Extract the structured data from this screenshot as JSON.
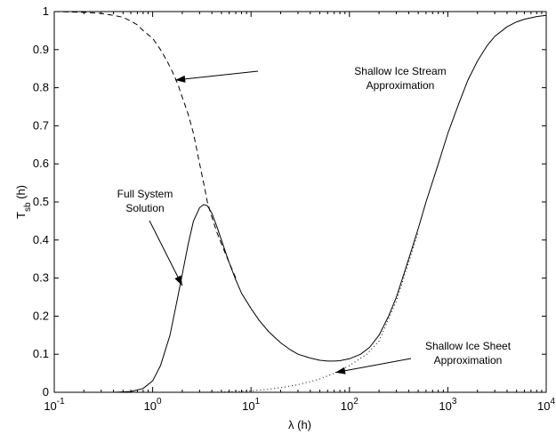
{
  "chart_data": {
    "type": "line",
    "title": "",
    "xlabel": "λ (h)",
    "ylabel": {
      "main": "T",
      "sub": "sb",
      "suffix": " (h)"
    },
    "x_scale": "log",
    "xlim": [
      0.1,
      10000
    ],
    "ylim": [
      0,
      1
    ],
    "grid": false,
    "x_ticks": [
      {
        "value": 0.1,
        "base": "10",
        "exp": "-1"
      },
      {
        "value": 1,
        "base": "10",
        "exp": "0"
      },
      {
        "value": 10,
        "base": "10",
        "exp": "1"
      },
      {
        "value": 100,
        "base": "10",
        "exp": "2"
      },
      {
        "value": 1000,
        "base": "10",
        "exp": "3"
      },
      {
        "value": 10000,
        "base": "10",
        "exp": "4"
      }
    ],
    "y_ticks": [
      {
        "value": 0,
        "label": "0"
      },
      {
        "value": 0.1,
        "label": "0.1"
      },
      {
        "value": 0.2,
        "label": "0.2"
      },
      {
        "value": 0.3,
        "label": "0.3"
      },
      {
        "value": 0.4,
        "label": "0.4"
      },
      {
        "value": 0.5,
        "label": "0.5"
      },
      {
        "value": 0.6,
        "label": "0.6"
      },
      {
        "value": 0.7,
        "label": "0.7"
      },
      {
        "value": 0.8,
        "label": "0.8"
      },
      {
        "value": 0.9,
        "label": "0.9"
      },
      {
        "value": 1,
        "label": "1"
      }
    ],
    "series": [
      {
        "style": "solid",
        "x": [
          0.1,
          0.4,
          0.6,
          0.8,
          1.0,
          1.2,
          1.5,
          1.8,
          2.0,
          2.3,
          2.6,
          3.0,
          3.3,
          3.6,
          4.0,
          4.5,
          5.0,
          6.0,
          7.0,
          8.0,
          10,
          12,
          15,
          20,
          25,
          30,
          40,
          50,
          60,
          70,
          80,
          100,
          130,
          160,
          200,
          250,
          300,
          400,
          500,
          600,
          800,
          1000,
          1300,
          1600,
          2000,
          2500,
          3000,
          4000,
          5000,
          6000,
          8000,
          10000
        ],
        "y": [
          0,
          0,
          0.002,
          0.01,
          0.03,
          0.07,
          0.15,
          0.25,
          0.31,
          0.39,
          0.45,
          0.485,
          0.493,
          0.49,
          0.47,
          0.435,
          0.4,
          0.34,
          0.295,
          0.26,
          0.22,
          0.19,
          0.16,
          0.13,
          0.112,
          0.1,
          0.09,
          0.084,
          0.082,
          0.082,
          0.083,
          0.088,
          0.1,
          0.118,
          0.15,
          0.2,
          0.25,
          0.35,
          0.43,
          0.5,
          0.6,
          0.68,
          0.76,
          0.82,
          0.87,
          0.91,
          0.935,
          0.96,
          0.973,
          0.98,
          0.987,
          0.99
        ]
      },
      {
        "style": "dashed",
        "x": [
          0.1,
          0.2,
          0.3,
          0.4,
          0.5,
          0.6,
          0.7,
          0.8,
          1.0,
          1.2,
          1.4,
          1.6,
          1.8,
          2.0,
          2.3,
          2.6,
          3.0,
          3.3,
          3.6,
          4.0,
          4.5,
          5.0,
          6.0,
          7.0
        ],
        "y": [
          1.0,
          0.998,
          0.995,
          0.99,
          0.985,
          0.975,
          0.965,
          0.95,
          0.93,
          0.9,
          0.87,
          0.84,
          0.81,
          0.775,
          0.73,
          0.68,
          0.6,
          0.55,
          0.5,
          0.46,
          0.42,
          0.39,
          0.34,
          0.3
        ]
      },
      {
        "style": "dotted",
        "x": [
          3.0,
          5,
          7,
          10,
          15,
          20,
          30,
          40,
          50,
          70,
          100,
          150,
          200,
          300,
          500
        ],
        "y": [
          0.0,
          0.001,
          0.002,
          0.004,
          0.008,
          0.012,
          0.02,
          0.028,
          0.035,
          0.05,
          0.07,
          0.1,
          0.135,
          0.24,
          0.42
        ]
      }
    ],
    "annotations": [
      {
        "lines": [
          "Shallow Ice Stream",
          "Approximation"
        ],
        "arrow_to": {
          "x": 1.7,
          "y": 0.82
        }
      },
      {
        "lines": [
          "Full System",
          "Solution"
        ],
        "arrow_to": {
          "x": 2.0,
          "y": 0.28
        }
      },
      {
        "lines": [
          "Shallow Ice Sheet",
          "Approximation"
        ],
        "arrow_to": {
          "x": 72,
          "y": 0.052
        }
      }
    ]
  }
}
